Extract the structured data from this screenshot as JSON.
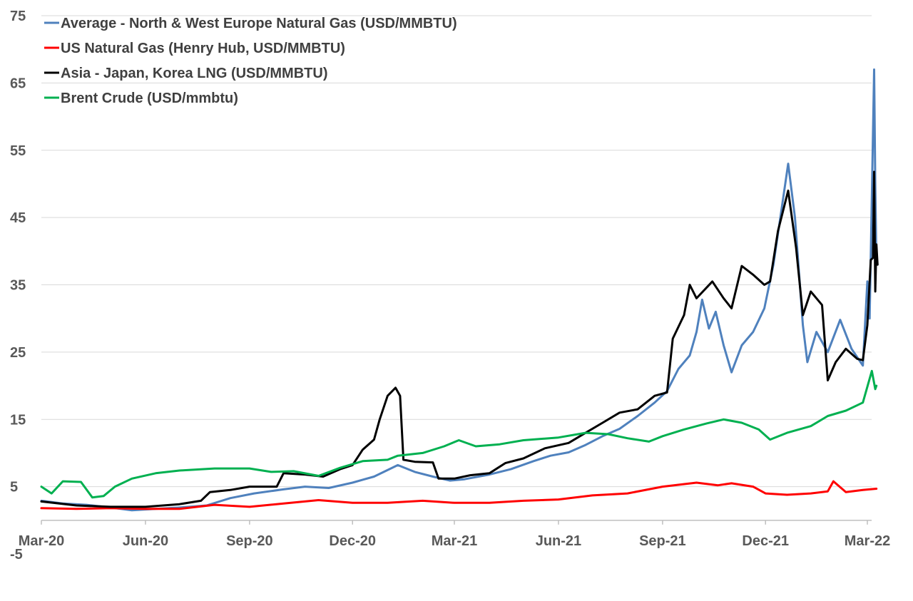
{
  "chart_data": {
    "type": "line",
    "title": "",
    "xlabel": "",
    "ylabel": "",
    "ylim": [
      -5,
      75
    ],
    "yticks": [
      -5,
      5,
      15,
      25,
      35,
      45,
      55,
      65,
      75
    ],
    "x_range": [
      "2020-03-01",
      "2022-03-10"
    ],
    "xticks": [
      {
        "date": "2020-03-01",
        "label": "Mar-20"
      },
      {
        "date": "2020-06-01",
        "label": "Jun-20"
      },
      {
        "date": "2020-09-01",
        "label": "Sep-20"
      },
      {
        "date": "2020-12-01",
        "label": "Dec-20"
      },
      {
        "date": "2021-03-01",
        "label": "Mar-21"
      },
      {
        "date": "2021-06-01",
        "label": "Jun-21"
      },
      {
        "date": "2021-09-01",
        "label": "Sep-21"
      },
      {
        "date": "2021-12-01",
        "label": "Dec-21"
      },
      {
        "date": "2022-03-01",
        "label": "Mar-22"
      }
    ],
    "grid": true,
    "legend_position": "top-left",
    "series": [
      {
        "name": "Average - North & West Europe Natural Gas (USD/MMBTU)",
        "color": "#4f81bd",
        "points": [
          [
            "2020-03-01",
            2.9
          ],
          [
            "2020-03-20",
            2.5
          ],
          [
            "2020-04-10",
            2.3
          ],
          [
            "2020-05-01",
            1.9
          ],
          [
            "2020-05-20",
            1.5
          ],
          [
            "2020-06-10",
            1.7
          ],
          [
            "2020-07-01",
            1.9
          ],
          [
            "2020-07-25",
            2.2
          ],
          [
            "2020-08-15",
            3.3
          ],
          [
            "2020-09-05",
            4.0
          ],
          [
            "2020-10-01",
            4.6
          ],
          [
            "2020-10-20",
            5.0
          ],
          [
            "2020-11-10",
            4.8
          ],
          [
            "2020-12-01",
            5.6
          ],
          [
            "2020-12-20",
            6.5
          ],
          [
            "2021-01-10",
            8.2
          ],
          [
            "2021-01-25",
            7.2
          ],
          [
            "2021-02-10",
            6.5
          ],
          [
            "2021-02-25",
            5.9
          ],
          [
            "2021-03-10",
            6.1
          ],
          [
            "2021-04-01",
            6.8
          ],
          [
            "2021-04-20",
            7.6
          ],
          [
            "2021-05-10",
            8.8
          ],
          [
            "2021-05-25",
            9.6
          ],
          [
            "2021-06-10",
            10.1
          ],
          [
            "2021-06-25",
            11.2
          ],
          [
            "2021-07-10",
            12.5
          ],
          [
            "2021-07-25",
            13.6
          ],
          [
            "2021-08-10",
            15.5
          ],
          [
            "2021-08-25",
            17.5
          ],
          [
            "2021-09-05",
            19.2
          ],
          [
            "2021-09-15",
            22.5
          ],
          [
            "2021-09-25",
            24.5
          ],
          [
            "2021-10-01",
            28.0
          ],
          [
            "2021-10-06",
            32.8
          ],
          [
            "2021-10-12",
            28.5
          ],
          [
            "2021-10-18",
            31.0
          ],
          [
            "2021-10-25",
            26.0
          ],
          [
            "2021-11-01",
            22.0
          ],
          [
            "2021-11-10",
            26.0
          ],
          [
            "2021-11-20",
            28.0
          ],
          [
            "2021-11-30",
            31.5
          ],
          [
            "2021-12-08",
            38.0
          ],
          [
            "2021-12-15",
            46.0
          ],
          [
            "2021-12-21",
            53.0
          ],
          [
            "2021-12-27",
            45.0
          ],
          [
            "2022-01-03",
            29.0
          ],
          [
            "2022-01-07",
            23.5
          ],
          [
            "2022-01-15",
            28.0
          ],
          [
            "2022-01-25",
            25.0
          ],
          [
            "2022-02-05",
            29.8
          ],
          [
            "2022-02-15",
            25.5
          ],
          [
            "2022-02-25",
            23.0
          ],
          [
            "2022-03-01",
            35.5
          ],
          [
            "2022-03-03",
            30.0
          ],
          [
            "2022-03-05",
            48.0
          ],
          [
            "2022-03-07",
            67.0
          ],
          [
            "2022-03-08",
            50.0
          ],
          [
            "2022-03-09",
            38.0
          ]
        ]
      },
      {
        "name": "US Natural Gas (Henry Hub, USD/MMBTU)",
        "color": "#ff0000",
        "points": [
          [
            "2020-03-01",
            1.8
          ],
          [
            "2020-04-01",
            1.7
          ],
          [
            "2020-05-01",
            1.8
          ],
          [
            "2020-06-01",
            1.7
          ],
          [
            "2020-07-01",
            1.7
          ],
          [
            "2020-08-01",
            2.3
          ],
          [
            "2020-09-01",
            2.0
          ],
          [
            "2020-10-01",
            2.5
          ],
          [
            "2020-11-01",
            3.0
          ],
          [
            "2020-12-01",
            2.6
          ],
          [
            "2021-01-01",
            2.6
          ],
          [
            "2021-02-01",
            2.9
          ],
          [
            "2021-03-01",
            2.6
          ],
          [
            "2021-04-01",
            2.6
          ],
          [
            "2021-05-01",
            2.9
          ],
          [
            "2021-06-01",
            3.1
          ],
          [
            "2021-07-01",
            3.7
          ],
          [
            "2021-08-01",
            4.0
          ],
          [
            "2021-09-01",
            5.0
          ],
          [
            "2021-10-01",
            5.6
          ],
          [
            "2021-10-20",
            5.2
          ],
          [
            "2021-11-01",
            5.5
          ],
          [
            "2021-11-20",
            5.0
          ],
          [
            "2021-12-01",
            4.0
          ],
          [
            "2021-12-20",
            3.8
          ],
          [
            "2022-01-10",
            4.0
          ],
          [
            "2022-01-25",
            4.3
          ],
          [
            "2022-01-30",
            5.8
          ],
          [
            "2022-02-10",
            4.2
          ],
          [
            "2022-02-25",
            4.5
          ],
          [
            "2022-03-09",
            4.7
          ]
        ]
      },
      {
        "name": "Asia - Japan, Korea LNG (USD/MMBTU)",
        "color": "#000000",
        "points": [
          [
            "2020-03-01",
            2.8
          ],
          [
            "2020-04-01",
            2.2
          ],
          [
            "2020-05-01",
            2.0
          ],
          [
            "2020-06-01",
            2.0
          ],
          [
            "2020-07-01",
            2.4
          ],
          [
            "2020-07-20",
            2.9
          ],
          [
            "2020-07-28",
            4.2
          ],
          [
            "2020-08-15",
            4.5
          ],
          [
            "2020-09-01",
            5.0
          ],
          [
            "2020-09-25",
            5.0
          ],
          [
            "2020-10-01",
            7.0
          ],
          [
            "2020-10-20",
            6.8
          ],
          [
            "2020-11-05",
            6.5
          ],
          [
            "2020-11-20",
            7.6
          ],
          [
            "2020-12-01",
            8.2
          ],
          [
            "2020-12-10",
            10.5
          ],
          [
            "2020-12-20",
            12.0
          ],
          [
            "2020-12-25",
            15.0
          ],
          [
            "2021-01-01",
            18.5
          ],
          [
            "2021-01-08",
            19.7
          ],
          [
            "2021-01-12",
            18.5
          ],
          [
            "2021-01-15",
            9.0
          ],
          [
            "2021-01-25",
            8.7
          ],
          [
            "2021-02-10",
            8.6
          ],
          [
            "2021-02-15",
            6.2
          ],
          [
            "2021-03-01",
            6.2
          ],
          [
            "2021-03-15",
            6.7
          ],
          [
            "2021-04-01",
            7.0
          ],
          [
            "2021-04-15",
            8.5
          ],
          [
            "2021-05-01",
            9.2
          ],
          [
            "2021-05-20",
            10.7
          ],
          [
            "2021-06-10",
            11.5
          ],
          [
            "2021-06-25",
            13.0
          ],
          [
            "2021-07-10",
            14.5
          ],
          [
            "2021-07-25",
            16.0
          ],
          [
            "2021-08-10",
            16.5
          ],
          [
            "2021-08-25",
            18.5
          ],
          [
            "2021-09-05",
            19.0
          ],
          [
            "2021-09-10",
            27.0
          ],
          [
            "2021-09-20",
            30.5
          ],
          [
            "2021-09-25",
            35.0
          ],
          [
            "2021-10-01",
            33.0
          ],
          [
            "2021-10-15",
            35.5
          ],
          [
            "2021-10-25",
            33.0
          ],
          [
            "2021-11-01",
            31.5
          ],
          [
            "2021-11-10",
            37.8
          ],
          [
            "2021-11-20",
            36.5
          ],
          [
            "2021-11-30",
            35.0
          ],
          [
            "2021-12-05",
            35.5
          ],
          [
            "2021-12-12",
            43.0
          ],
          [
            "2021-12-21",
            49.0
          ],
          [
            "2021-12-28",
            40.5
          ],
          [
            "2022-01-03",
            30.5
          ],
          [
            "2022-01-10",
            34.0
          ],
          [
            "2022-01-20",
            32.0
          ],
          [
            "2022-01-25",
            20.8
          ],
          [
            "2022-02-01",
            23.5
          ],
          [
            "2022-02-10",
            25.5
          ],
          [
            "2022-02-20",
            24.0
          ],
          [
            "2022-02-25",
            23.8
          ],
          [
            "2022-03-01",
            29.0
          ],
          [
            "2022-03-04",
            38.7
          ],
          [
            "2022-03-06",
            39.0
          ],
          [
            "2022-03-07",
            51.8
          ],
          [
            "2022-03-08",
            34.0
          ],
          [
            "2022-03-09",
            41.0
          ],
          [
            "2022-03-10",
            38.0
          ]
        ]
      },
      {
        "name": "Brent Crude (USD/mmbtu)",
        "color": "#00b050",
        "points": [
          [
            "2020-03-01",
            5.0
          ],
          [
            "2020-03-10",
            4.0
          ],
          [
            "2020-03-20",
            5.8
          ],
          [
            "2020-04-05",
            5.7
          ],
          [
            "2020-04-15",
            3.4
          ],
          [
            "2020-04-25",
            3.6
          ],
          [
            "2020-05-05",
            5.0
          ],
          [
            "2020-05-20",
            6.2
          ],
          [
            "2020-06-10",
            7.0
          ],
          [
            "2020-07-01",
            7.4
          ],
          [
            "2020-08-01",
            7.7
          ],
          [
            "2020-09-01",
            7.7
          ],
          [
            "2020-09-20",
            7.2
          ],
          [
            "2020-10-10",
            7.3
          ],
          [
            "2020-11-01",
            6.6
          ],
          [
            "2020-11-20",
            7.8
          ],
          [
            "2020-12-10",
            8.8
          ],
          [
            "2021-01-01",
            9.0
          ],
          [
            "2021-01-10",
            9.6
          ],
          [
            "2021-02-01",
            10.0
          ],
          [
            "2021-02-20",
            11.0
          ],
          [
            "2021-03-05",
            11.9
          ],
          [
            "2021-03-20",
            11.0
          ],
          [
            "2021-04-10",
            11.3
          ],
          [
            "2021-05-01",
            11.9
          ],
          [
            "2021-06-01",
            12.3
          ],
          [
            "2021-06-25",
            13.0
          ],
          [
            "2021-07-15",
            12.8
          ],
          [
            "2021-08-01",
            12.2
          ],
          [
            "2021-08-20",
            11.7
          ],
          [
            "2021-09-01",
            12.5
          ],
          [
            "2021-09-20",
            13.5
          ],
          [
            "2021-10-10",
            14.4
          ],
          [
            "2021-10-25",
            15.0
          ],
          [
            "2021-11-10",
            14.5
          ],
          [
            "2021-11-25",
            13.5
          ],
          [
            "2021-12-05",
            12.0
          ],
          [
            "2021-12-20",
            13.0
          ],
          [
            "2022-01-10",
            14.0
          ],
          [
            "2022-01-25",
            15.5
          ],
          [
            "2022-02-10",
            16.3
          ],
          [
            "2022-02-25",
            17.5
          ],
          [
            "2022-03-05",
            22.2
          ],
          [
            "2022-03-08",
            19.5
          ],
          [
            "2022-03-09",
            20.0
          ]
        ]
      }
    ]
  }
}
